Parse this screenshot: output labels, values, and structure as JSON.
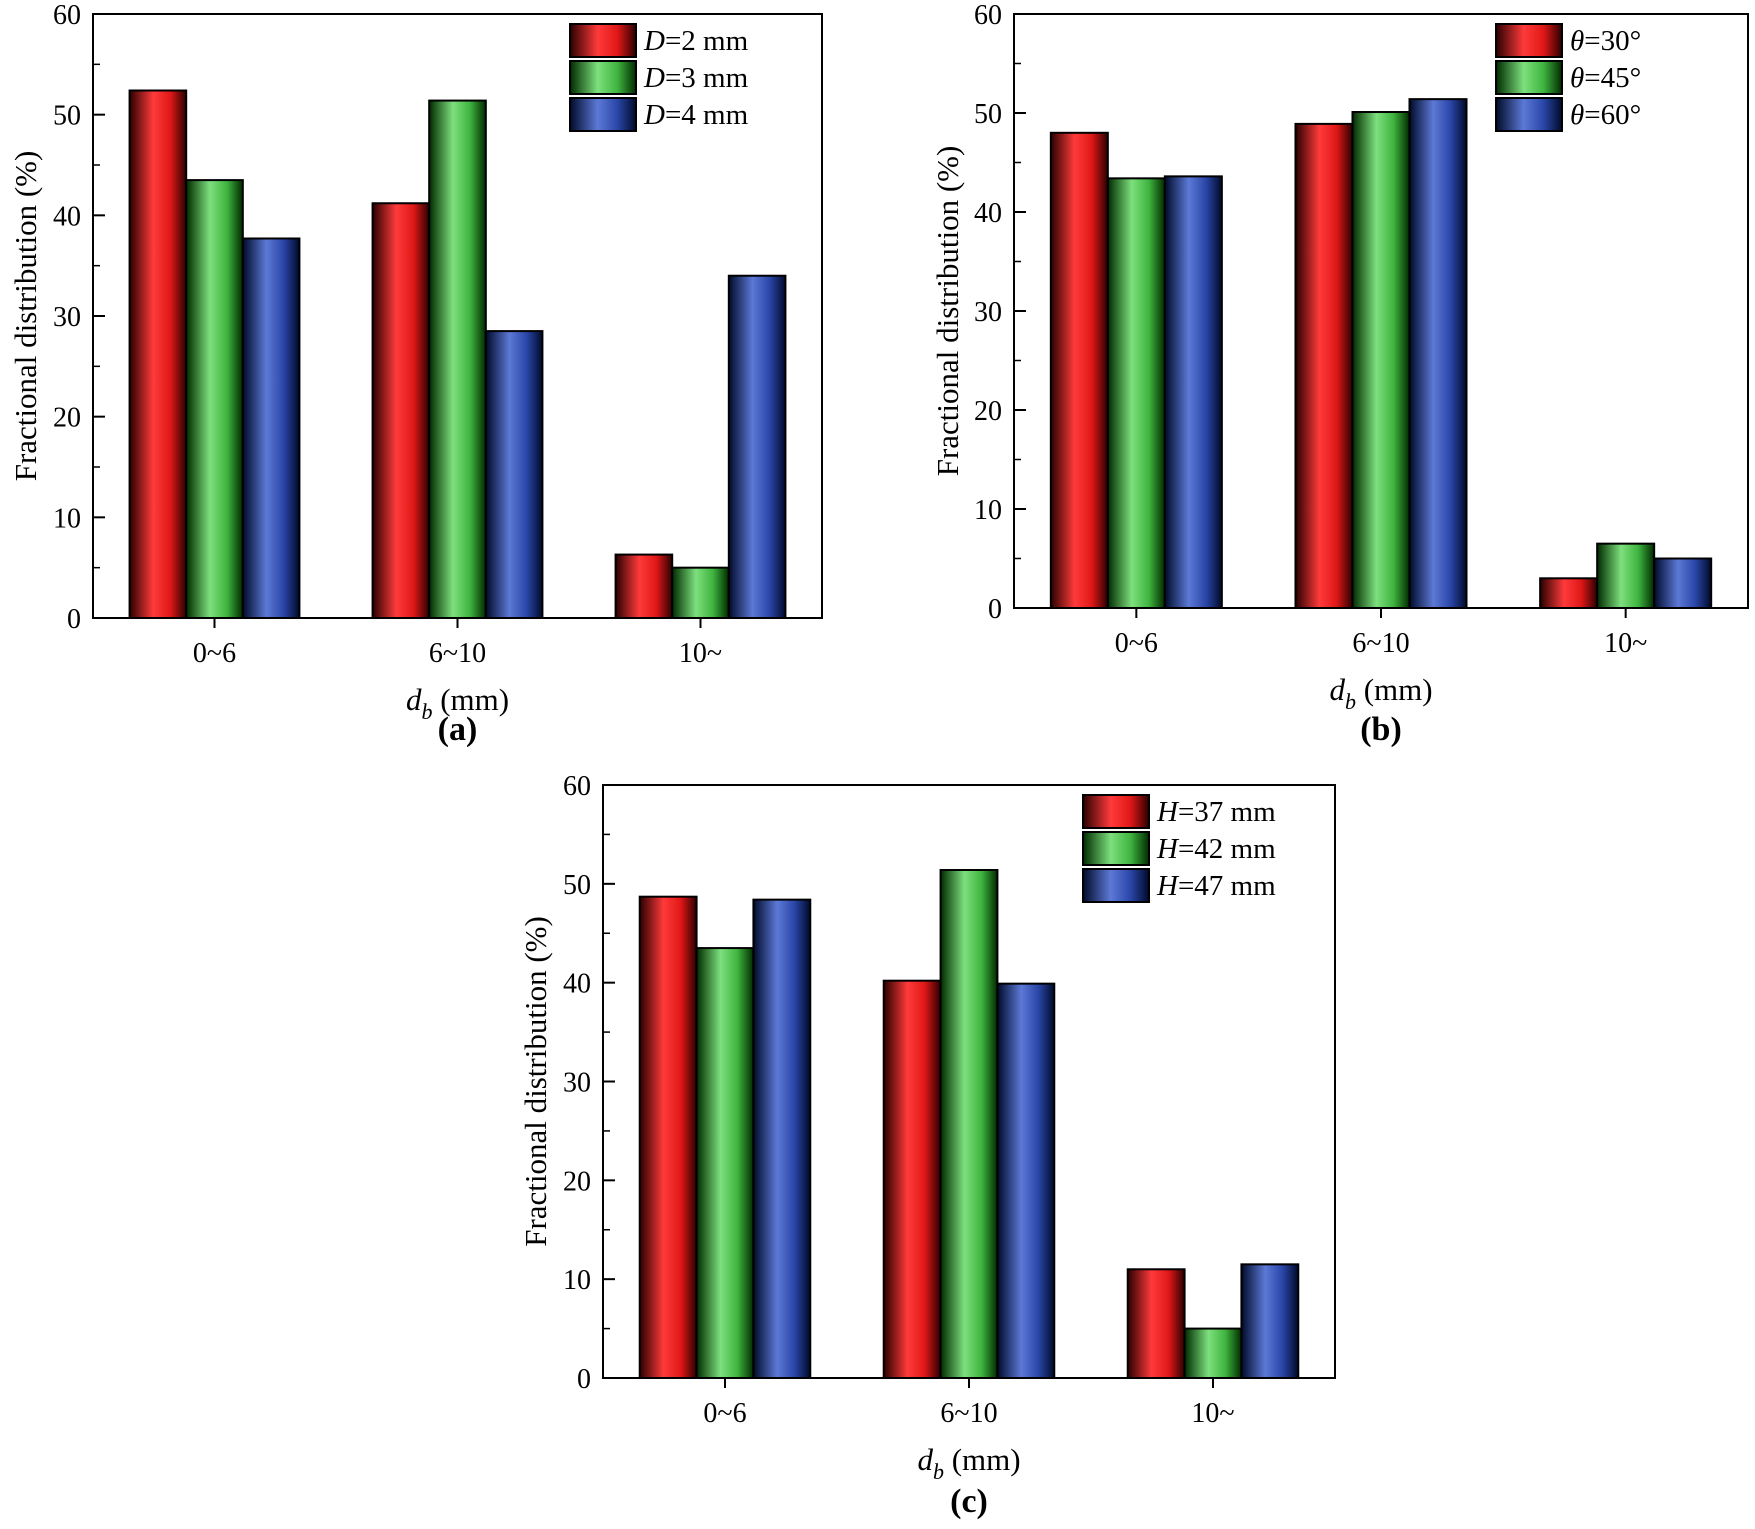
{
  "chart_data": [
    {
      "type": "bar",
      "panel": "a",
      "caption": "(a)",
      "caption_letter": "a",
      "categories": [
        "0~6",
        "6~10",
        "10~"
      ],
      "ylabel": "Fractional distribution (%)",
      "xlabel_symbol": "d",
      "xlabel_subscript": "b",
      "xlabel_unit": "(mm)",
      "ylim": [
        0,
        60
      ],
      "yticks": [
        0,
        10,
        20,
        30,
        40,
        50,
        60
      ],
      "legend_position": "top-right",
      "series": [
        {
          "name": "D=2 mm",
          "var": "D",
          "rest": "=2 mm",
          "color": "red",
          "values": [
            52.4,
            41.2,
            6.3
          ]
        },
        {
          "name": "D=3 mm",
          "var": "D",
          "rest": "=3 mm",
          "color": "green",
          "values": [
            43.5,
            51.4,
            5.0
          ]
        },
        {
          "name": "D=4 mm",
          "var": "D",
          "rest": "=4 mm",
          "color": "blue",
          "values": [
            37.7,
            28.5,
            34.0
          ]
        }
      ]
    },
    {
      "type": "bar",
      "panel": "b",
      "caption": "(b)",
      "caption_letter": "b",
      "categories": [
        "0~6",
        "6~10",
        "10~"
      ],
      "ylabel": "Fractional distribution (%)",
      "xlabel_symbol": "d",
      "xlabel_subscript": "b",
      "xlabel_unit": "(mm)",
      "ylim": [
        0,
        60
      ],
      "yticks": [
        0,
        10,
        20,
        30,
        40,
        50,
        60
      ],
      "legend_position": "top-right",
      "series": [
        {
          "name": "θ=30°",
          "var": "θ",
          "rest": "=30°",
          "color": "red",
          "values": [
            48.0,
            48.9,
            3.0
          ]
        },
        {
          "name": "θ=45°",
          "var": "θ",
          "rest": "=45°",
          "color": "green",
          "values": [
            43.4,
            50.1,
            6.5
          ]
        },
        {
          "name": "θ=60°",
          "var": "θ",
          "rest": "=60°",
          "color": "blue",
          "values": [
            43.6,
            51.4,
            5.0
          ]
        }
      ]
    },
    {
      "type": "bar",
      "panel": "c",
      "caption": "(c)",
      "caption_letter": "c",
      "categories": [
        "0~6",
        "6~10",
        "10~"
      ],
      "ylabel": "Fractional distribution (%)",
      "xlabel_symbol": "d",
      "xlabel_subscript": "b",
      "xlabel_unit": "(mm)",
      "ylim": [
        0,
        60
      ],
      "yticks": [
        0,
        10,
        20,
        30,
        40,
        50,
        60
      ],
      "legend_position": "top-right",
      "series": [
        {
          "name": "H=37 mm",
          "var": "H",
          "rest": "=37 mm",
          "color": "red",
          "values": [
            48.7,
            40.2,
            11.0
          ]
        },
        {
          "name": "H=42 mm",
          "var": "H",
          "rest": "=42 mm",
          "color": "green",
          "values": [
            43.5,
            51.4,
            5.0
          ]
        },
        {
          "name": "H=47 mm",
          "var": "H",
          "rest": "=47 mm",
          "color": "blue",
          "values": [
            48.4,
            39.9,
            11.5
          ]
        }
      ]
    }
  ],
  "colors": {
    "red": {
      "light": "#ff3a3a",
      "mid": "#e01717",
      "dark": "#2a0000"
    },
    "green": {
      "light": "#7de07d",
      "mid": "#3fb43f",
      "dark": "#002a00"
    },
    "blue": {
      "light": "#5c79d6",
      "mid": "#2a46a8",
      "dark": "#000a2a"
    }
  }
}
